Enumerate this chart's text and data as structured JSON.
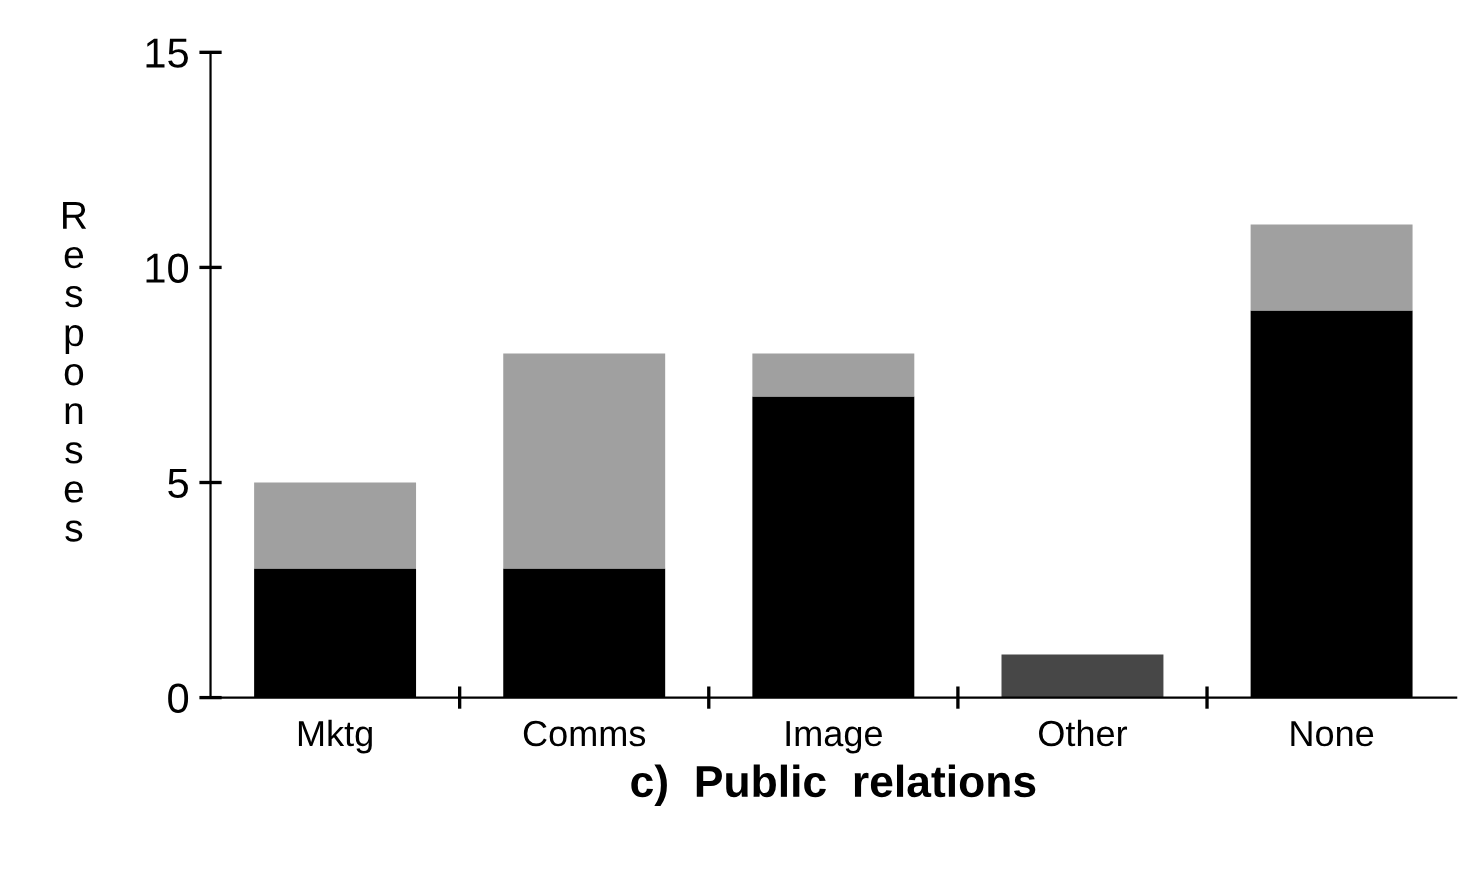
{
  "chart_data": {
    "type": "bar",
    "stacked": true,
    "xlabel": "c)  Public  relations",
    "ylabel": "Responses",
    "categories": [
      "Mktg",
      "Comms",
      "Image",
      "Other",
      "None"
    ],
    "series": [
      {
        "color": "#000000",
        "values": [
          3,
          3,
          7,
          0,
          9
        ]
      },
      {
        "colors": [
          "#a0a0a0",
          "#a0a0a0",
          "#a0a0a0",
          "#474747",
          "#a0a0a0"
        ],
        "values": [
          2,
          5,
          1,
          1,
          2
        ]
      }
    ],
    "ylim": [
      0,
      15
    ],
    "yticks": [
      0,
      5,
      10,
      15
    ],
    "grid": false,
    "legend": false
  }
}
